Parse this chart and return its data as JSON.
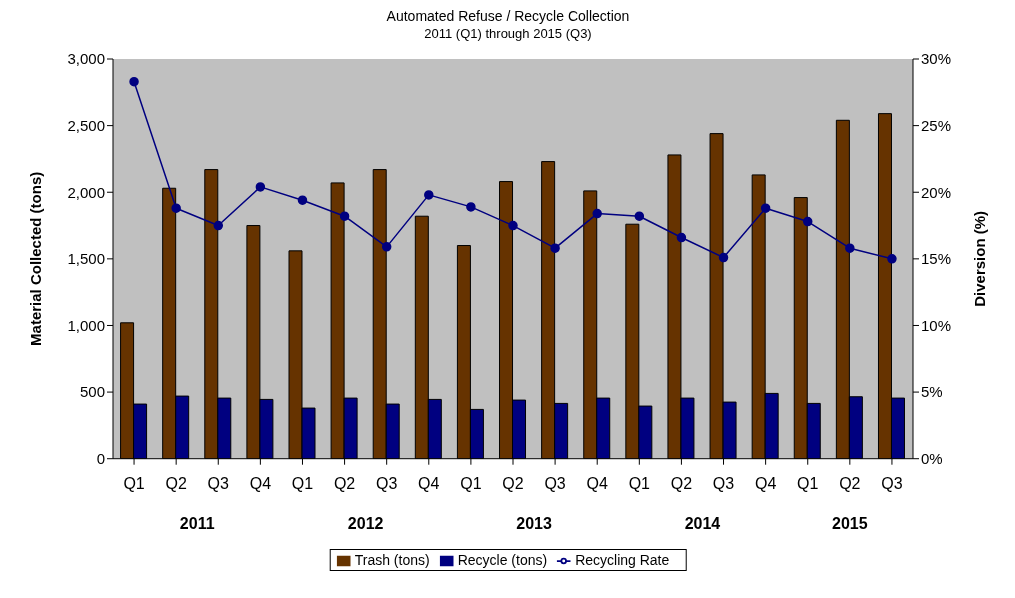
{
  "chart_data": {
    "type": "bar",
    "title": "Automated Refuse / Recycle Collection",
    "subtitle": "2011 (Q1)  through 2015 (Q3)",
    "ylabel": "Material Collected (tons)",
    "y2label": "Diversion (%)",
    "categories": [
      "Q1",
      "Q2",
      "Q3",
      "Q4",
      "Q1",
      "Q2",
      "Q3",
      "Q4",
      "Q1",
      "Q2",
      "Q3",
      "Q4",
      "Q1",
      "Q2",
      "Q3",
      "Q4",
      "Q1",
      "Q2",
      "Q3"
    ],
    "annotations": [
      "2011",
      "2012",
      "2013",
      "2014",
      "2015"
    ],
    "series": [
      {
        "name": "Trash (tons)",
        "color": "#663300",
        "values": [
          1020,
          2030,
          2170,
          1750,
          1560,
          2070,
          2170,
          1820,
          1600,
          2080,
          2230,
          2010,
          1760,
          2280,
          2440,
          2130,
          1960,
          2540,
          2590
        ]
      },
      {
        "name": "Recycle (tons)",
        "color": "#000080",
        "values": [
          410,
          470,
          455,
          445,
          380,
          455,
          410,
          445,
          370,
          440,
          415,
          455,
          395,
          455,
          425,
          490,
          415,
          465,
          455
        ]
      },
      {
        "name": "Recycling Rate",
        "type": "line",
        "axis": "y2",
        "color": "#000080",
        "marker": "circle",
        "values": [
          28.3,
          18.8,
          17.5,
          20.4,
          19.4,
          18.2,
          15.9,
          19.8,
          18.9,
          17.5,
          15.8,
          18.4,
          18.2,
          16.6,
          15.1,
          18.8,
          17.8,
          15.8,
          15.0
        ]
      }
    ],
    "ylim": [
      0,
      3000
    ],
    "yticks": [
      {
        "value": 0,
        "label": "0"
      },
      {
        "value": 500,
        "label": "500"
      },
      {
        "value": 1000,
        "label": "1,000"
      },
      {
        "value": 1500,
        "label": "1,500"
      },
      {
        "value": 2000,
        "label": "2,000"
      },
      {
        "value": 2500,
        "label": "2,500"
      },
      {
        "value": 3000,
        "label": "3,000"
      }
    ],
    "y2lim": [
      0,
      30
    ],
    "y2ticks": [
      {
        "value": 0,
        "label": "0%"
      },
      {
        "value": 5,
        "label": "5%"
      },
      {
        "value": 10,
        "label": "10%"
      },
      {
        "value": 15,
        "label": "15%"
      },
      {
        "value": 20,
        "label": "20%"
      },
      {
        "value": 25,
        "label": "25%"
      },
      {
        "value": 30,
        "label": "30%"
      }
    ],
    "grid": false,
    "legend": "bottom"
  }
}
